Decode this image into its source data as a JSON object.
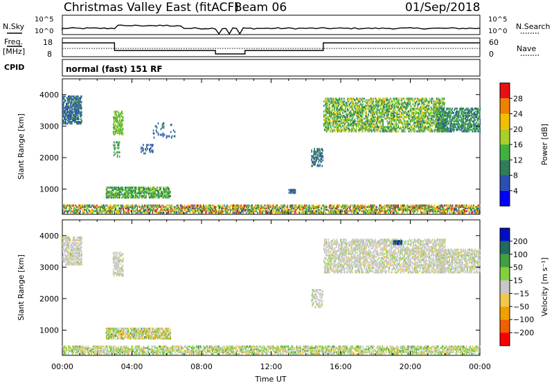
{
  "header": {
    "title": "Christmas Valley East (fitACF)",
    "beam": "Beam 06",
    "date": "01/Sep/2018"
  },
  "sky_panel": {
    "left_label": "N.Sky",
    "right_label": "N.Search",
    "left_ticks": [
      "10^5",
      "10^0"
    ],
    "right_ticks": [
      "10^5",
      "10^0"
    ]
  },
  "freq_panel": {
    "left_label_1": "Freq.",
    "left_label_2": "[MHz]",
    "right_label": "Nave",
    "left_ticks": [
      "18",
      "8"
    ],
    "right_ticks": [
      "60",
      "0"
    ]
  },
  "cpid": {
    "label": "CPID",
    "value": "normal (fast) 151 RF"
  },
  "colors": {
    "power": [
      "#0000ff",
      "#2a4fb0",
      "#2e7d5b",
      "#40b040",
      "#a8d028",
      "#f0c000",
      "#f08000",
      "#e81010"
    ],
    "velocity": [
      "#ff0000",
      "#f06000",
      "#f0a000",
      "#f0c850",
      "#c8c8c8",
      "#80d040",
      "#40a040",
      "#206a60",
      "#0010c0"
    ]
  },
  "chart_data": [
    {
      "type": "heatmap",
      "name": "power-panel",
      "ylabel": "Slant Range [km]",
      "xlabel": "",
      "x_ticks": [
        "00:00",
        "04:00",
        "08:00",
        "12:00",
        "16:00",
        "20:00",
        "00:00"
      ],
      "xlim_hours": [
        0,
        24
      ],
      "ylim_km": [
        200,
        4500
      ],
      "y_ticks": [
        "1000",
        "2000",
        "3000",
        "4000"
      ],
      "y_tick_values": [
        1000,
        2000,
        3000,
        4000
      ],
      "colorbar_label": "Power [dB]",
      "colorbar_ticks": [
        "4",
        "8",
        "12",
        "16",
        "20",
        "24",
        "28"
      ],
      "colorbar_range": [
        0,
        32
      ],
      "clusters": [
        {
          "t0": 0.0,
          "t1": 1.1,
          "r0": 3050,
          "r1": 3950,
          "dens": 0.55,
          "v0": 4,
          "v1": 12
        },
        {
          "t0": 2.9,
          "t1": 3.5,
          "r0": 2700,
          "r1": 3450,
          "dens": 0.5,
          "v0": 12,
          "v1": 20
        },
        {
          "t0": 2.9,
          "t1": 3.3,
          "r0": 2000,
          "r1": 2500,
          "dens": 0.3,
          "v0": 10,
          "v1": 16
        },
        {
          "t0": 2.5,
          "t1": 6.2,
          "r0": 700,
          "r1": 1050,
          "dens": 0.6,
          "v0": 8,
          "v1": 18
        },
        {
          "t0": 4.5,
          "t1": 5.2,
          "r0": 2100,
          "r1": 2400,
          "dens": 0.25,
          "v0": 4,
          "v1": 10
        },
        {
          "t0": 5.2,
          "t1": 6.5,
          "r0": 2600,
          "r1": 3100,
          "dens": 0.12,
          "v0": 4,
          "v1": 10
        },
        {
          "t0": 14.3,
          "t1": 15.0,
          "r0": 1700,
          "r1": 2300,
          "dens": 0.4,
          "v0": 6,
          "v1": 12
        },
        {
          "t0": 15.0,
          "t1": 22.0,
          "r0": 2800,
          "r1": 3900,
          "dens": 0.45,
          "v0": 8,
          "v1": 22
        },
        {
          "t0": 21.5,
          "t1": 24.0,
          "r0": 2800,
          "r1": 3550,
          "dens": 0.5,
          "v0": 6,
          "v1": 16
        },
        {
          "t0": 13.0,
          "t1": 13.4,
          "r0": 850,
          "r1": 1000,
          "dens": 0.8,
          "v0": 4,
          "v1": 10
        },
        {
          "t0": 0.0,
          "t1": 24.0,
          "r0": 220,
          "r1": 500,
          "dens": 0.5,
          "v0": 6,
          "v1": 30
        }
      ]
    },
    {
      "type": "heatmap",
      "name": "velocity-panel",
      "ylabel": "Slant Range [km]",
      "xlabel": "Time UT",
      "x_ticks": [
        "00:00",
        "04:00",
        "08:00",
        "12:00",
        "16:00",
        "20:00",
        "00:00"
      ],
      "xlim_hours": [
        0,
        24
      ],
      "ylim_km": [
        200,
        4500
      ],
      "y_ticks": [
        "1000",
        "2000",
        "3000",
        "4000"
      ],
      "y_tick_values": [
        1000,
        2000,
        3000,
        4000
      ],
      "colorbar_label": "Velocity [m s⁻¹]",
      "colorbar_ticks": [
        "200",
        "100",
        "50",
        "15",
        "−15",
        "−50",
        "−100",
        "−200"
      ],
      "colorbar_range": [
        -300,
        300
      ],
      "clusters": [
        {
          "t0": 0.0,
          "t1": 1.1,
          "r0": 3050,
          "r1": 3950,
          "dens": 0.5,
          "v0": -20,
          "v1": 20
        },
        {
          "t0": 2.9,
          "t1": 3.5,
          "r0": 2700,
          "r1": 3450,
          "dens": 0.5,
          "v0": -20,
          "v1": 20
        },
        {
          "t0": 2.5,
          "t1": 6.2,
          "r0": 700,
          "r1": 1050,
          "dens": 0.6,
          "v0": -60,
          "v1": 60
        },
        {
          "t0": 14.3,
          "t1": 15.0,
          "r0": 1700,
          "r1": 2300,
          "dens": 0.35,
          "v0": -20,
          "v1": 20
        },
        {
          "t0": 15.0,
          "t1": 22.0,
          "r0": 2800,
          "r1": 3900,
          "dens": 0.45,
          "v0": -20,
          "v1": 20
        },
        {
          "t0": 19.0,
          "t1": 19.5,
          "r0": 3700,
          "r1": 3850,
          "dens": 0.8,
          "v0": 150,
          "v1": 250
        },
        {
          "t0": 21.5,
          "t1": 24.0,
          "r0": 2800,
          "r1": 3550,
          "dens": 0.45,
          "v0": -20,
          "v1": 20
        },
        {
          "t0": 0.0,
          "t1": 24.0,
          "r0": 220,
          "r1": 500,
          "dens": 0.5,
          "v0": -40,
          "v1": 60
        }
      ]
    }
  ]
}
